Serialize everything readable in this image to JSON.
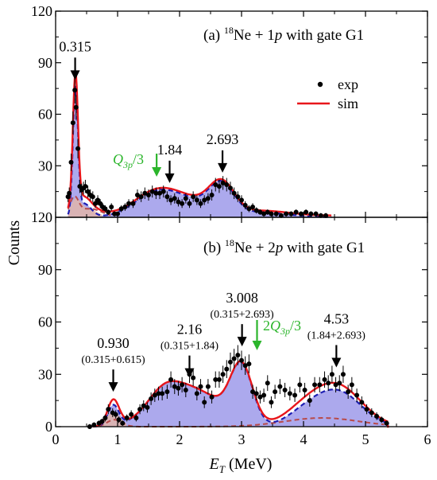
{
  "colors": {
    "exp": "#000000",
    "sim": "#e8161b",
    "fill": "#9d9aea",
    "blue_dash": "#1d1db3",
    "red_dash": "#b84a4a",
    "tan_fill": "#e8b7a0",
    "green": "#2bb52b",
    "black": "#000000"
  },
  "chart_data": {
    "type": "scatter",
    "shared_x": {
      "label": "E_T (MeV)",
      "xlabel_main": "E",
      "xlabel_sub": "T",
      "xlabel_unit": " (MeV)",
      "xlim": [
        0,
        6
      ],
      "ticks": [
        0,
        1,
        2,
        3,
        4,
        5,
        6
      ]
    },
    "ylabel": "Counts",
    "panels": [
      {
        "id": "a",
        "title_prefix": "(a) ",
        "title_sup": "18",
        "title_mid": "Ne + 1",
        "title_ital": "p",
        "title_suffix": " with gate G1",
        "ylim": [
          0,
          120
        ],
        "yticks": [
          30,
          60,
          90,
          120
        ],
        "ytick_labels": [
          "30",
          "60",
          "90",
          "120"
        ],
        "legend": {
          "exp": "exp",
          "sim": "sim"
        },
        "exp_points": [
          [
            0.2,
            12
          ],
          [
            0.22,
            14
          ],
          [
            0.25,
            32
          ],
          [
            0.28,
            55
          ],
          [
            0.31,
            74
          ],
          [
            0.33,
            64
          ],
          [
            0.36,
            40
          ],
          [
            0.39,
            18
          ],
          [
            0.42,
            16
          ],
          [
            0.45,
            17
          ],
          [
            0.48,
            18
          ],
          [
            0.52,
            15
          ],
          [
            0.56,
            13
          ],
          [
            0.6,
            12
          ],
          [
            0.64,
            8
          ],
          [
            0.68,
            10
          ],
          [
            0.72,
            8
          ],
          [
            0.76,
            6
          ],
          [
            0.8,
            5
          ],
          [
            0.85,
            3
          ],
          [
            0.9,
            6
          ],
          [
            0.95,
            2
          ],
          [
            1.0,
            2
          ],
          [
            1.06,
            5
          ],
          [
            1.12,
            6
          ],
          [
            1.18,
            8
          ],
          [
            1.25,
            8
          ],
          [
            1.32,
            13
          ],
          [
            1.38,
            12
          ],
          [
            1.44,
            14
          ],
          [
            1.5,
            13
          ],
          [
            1.56,
            15
          ],
          [
            1.62,
            14
          ],
          [
            1.68,
            14
          ],
          [
            1.74,
            15
          ],
          [
            1.8,
            12
          ],
          [
            1.86,
            10
          ],
          [
            1.92,
            11
          ],
          [
            1.98,
            9
          ],
          [
            2.04,
            8
          ],
          [
            2.1,
            11
          ],
          [
            2.16,
            8
          ],
          [
            2.22,
            12
          ],
          [
            2.28,
            10
          ],
          [
            2.34,
            8
          ],
          [
            2.4,
            10
          ],
          [
            2.46,
            11
          ],
          [
            2.52,
            13
          ],
          [
            2.58,
            19
          ],
          [
            2.64,
            18
          ],
          [
            2.7,
            20
          ],
          [
            2.76,
            19
          ],
          [
            2.82,
            17
          ],
          [
            2.88,
            14
          ],
          [
            2.94,
            12
          ],
          [
            3.0,
            10
          ],
          [
            3.06,
            7
          ],
          [
            3.12,
            5
          ],
          [
            3.18,
            6
          ],
          [
            3.24,
            4
          ],
          [
            3.3,
            3
          ],
          [
            3.36,
            2
          ],
          [
            3.42,
            3
          ],
          [
            3.48,
            2
          ],
          [
            3.56,
            2
          ],
          [
            3.64,
            1
          ],
          [
            3.72,
            2
          ],
          [
            3.8,
            2
          ],
          [
            3.88,
            3
          ],
          [
            3.96,
            2
          ],
          [
            4.04,
            3
          ],
          [
            4.12,
            2
          ],
          [
            4.2,
            2
          ],
          [
            4.28,
            1
          ],
          [
            4.36,
            1
          ]
        ],
        "annotations": [
          {
            "text": "0.315",
            "x": 0.315,
            "tip_y": 80,
            "color": "black"
          },
          {
            "text": "1.84",
            "x": 1.84,
            "tip_y": 20,
            "color": "black"
          },
          {
            "text": "2.693",
            "x": 2.693,
            "tip_y": 26,
            "color": "black"
          }
        ],
        "green_label": {
          "q": "Q",
          "sub": "3p",
          "rest": "/3",
          "x": 1.63
        }
      },
      {
        "id": "b",
        "title_prefix": "(b) ",
        "title_sup": "18",
        "title_mid": "Ne + 2",
        "title_ital": "p",
        "title_suffix": " with gate G1",
        "ylim": [
          0,
          120
        ],
        "yticks": [
          0,
          30,
          60,
          90,
          120
        ],
        "ytick_labels": [
          "0",
          "30",
          "60",
          "90",
          "120"
        ],
        "exp_points": [
          [
            0.55,
            0
          ],
          [
            0.62,
            1
          ],
          [
            0.7,
            2
          ],
          [
            0.75,
            3
          ],
          [
            0.8,
            5
          ],
          [
            0.85,
            10
          ],
          [
            0.92,
            8
          ],
          [
            0.97,
            7
          ],
          [
            1.02,
            4
          ],
          [
            1.08,
            2
          ],
          [
            1.15,
            5
          ],
          [
            1.22,
            7
          ],
          [
            1.3,
            5
          ],
          [
            1.36,
            10
          ],
          [
            1.42,
            12
          ],
          [
            1.48,
            11
          ],
          [
            1.54,
            16
          ],
          [
            1.6,
            18
          ],
          [
            1.66,
            19
          ],
          [
            1.72,
            19
          ],
          [
            1.8,
            20
          ],
          [
            1.86,
            27
          ],
          [
            1.92,
            23
          ],
          [
            1.98,
            22
          ],
          [
            2.04,
            24
          ],
          [
            2.1,
            21
          ],
          [
            2.16,
            30
          ],
          [
            2.22,
            28
          ],
          [
            2.28,
            19
          ],
          [
            2.34,
            23
          ],
          [
            2.4,
            14
          ],
          [
            2.46,
            23
          ],
          [
            2.52,
            17
          ],
          [
            2.58,
            27
          ],
          [
            2.64,
            27
          ],
          [
            2.7,
            30
          ],
          [
            2.76,
            33
          ],
          [
            2.82,
            37
          ],
          [
            2.88,
            39
          ],
          [
            2.94,
            41
          ],
          [
            3.0,
            38
          ],
          [
            3.06,
            35
          ],
          [
            3.12,
            36
          ],
          [
            3.18,
            20
          ],
          [
            3.24,
            19
          ],
          [
            3.3,
            17
          ],
          [
            3.36,
            18
          ],
          [
            3.42,
            25
          ],
          [
            3.48,
            14
          ],
          [
            3.54,
            20
          ],
          [
            3.62,
            23
          ],
          [
            3.7,
            21
          ],
          [
            3.78,
            19
          ],
          [
            3.86,
            18
          ],
          [
            3.94,
            24
          ],
          [
            4.02,
            21
          ],
          [
            4.1,
            15
          ],
          [
            4.18,
            24
          ],
          [
            4.26,
            24
          ],
          [
            4.34,
            27
          ],
          [
            4.4,
            25
          ],
          [
            4.46,
            30
          ],
          [
            4.52,
            24
          ],
          [
            4.58,
            25
          ],
          [
            4.64,
            30
          ],
          [
            4.72,
            20
          ],
          [
            4.78,
            24
          ],
          [
            4.86,
            18
          ],
          [
            4.94,
            14
          ],
          [
            5.02,
            10
          ],
          [
            5.1,
            8
          ],
          [
            5.18,
            6
          ],
          [
            5.26,
            4
          ],
          [
            5.34,
            2
          ]
        ],
        "annotations": [
          {
            "text": "0.930",
            "sub": "(0.315+0.615)",
            "x": 0.93,
            "tip_y": 20
          },
          {
            "text": "2.16",
            "sub": "(0.315+1.84)",
            "x": 2.16,
            "tip_y": 28
          },
          {
            "text": "3.008",
            "sub": "(0.315+2.693)",
            "x": 3.008,
            "tip_y": 46
          },
          {
            "text": "4.53",
            "sub": "(1.84+2.693)",
            "x": 4.53,
            "tip_y": 34
          }
        ],
        "green_label": {
          "pre": "2",
          "q": "Q",
          "sub": "3p",
          "rest": "/3",
          "x": 3.25
        }
      }
    ]
  }
}
